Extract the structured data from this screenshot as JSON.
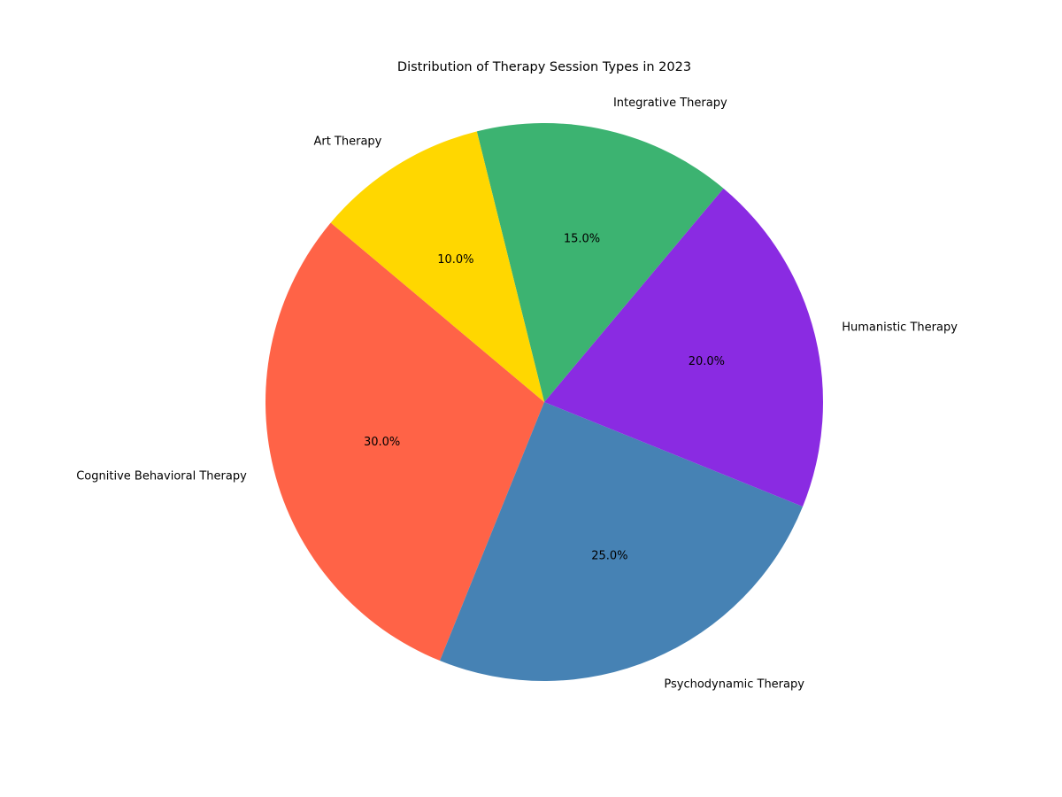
{
  "chart_data": {
    "type": "pie",
    "title": "Distribution of Therapy Session Types in 2023",
    "slices": [
      {
        "label": "Cognitive Behavioral Therapy",
        "value": 30.0,
        "pct_label": "30.0%",
        "color": "#FF6347"
      },
      {
        "label": "Psychodynamic Therapy",
        "value": 25.0,
        "pct_label": "25.0%",
        "color": "#4682B4"
      },
      {
        "label": "Humanistic Therapy",
        "value": 20.0,
        "pct_label": "20.0%",
        "color": "#8A2BE2"
      },
      {
        "label": "Integrative Therapy",
        "value": 15.0,
        "pct_label": "15.0%",
        "color": "#3CB371"
      },
      {
        "label": "Art Therapy",
        "value": 10.0,
        "pct_label": "10.0%",
        "color": "#FFD700"
      }
    ],
    "start_angle_deg": 140,
    "direction": "counterclockwise",
    "legend": "none"
  }
}
